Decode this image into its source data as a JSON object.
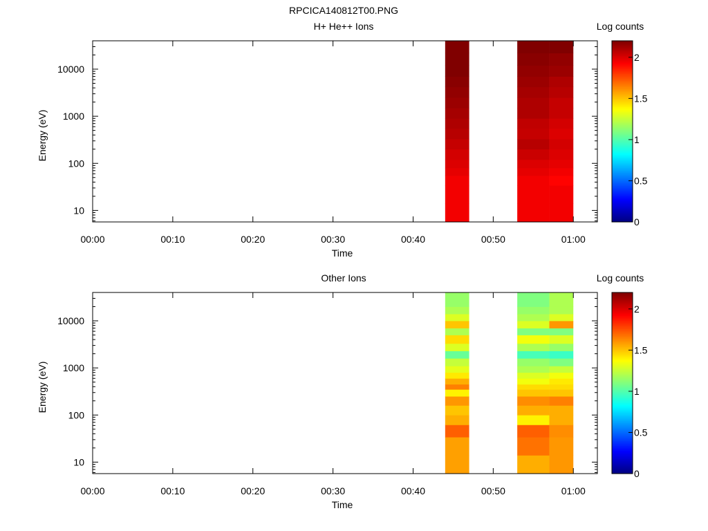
{
  "figure_title": "RPCICA140812T00.PNG",
  "chart_data": [
    {
      "type": "heatmap",
      "title": "H+ He++ Ions",
      "xlabel": "Time",
      "ylabel": "Energy (eV)",
      "yscale": "log",
      "ylim": [
        5.7,
        40000
      ],
      "xlim": [
        "00:00",
        "01:03"
      ],
      "x_ticks": [
        "00:00",
        "00:10",
        "00:20",
        "00:30",
        "00:40",
        "00:50",
        "01:00"
      ],
      "y_ticks": [
        "10",
        "100",
        "1000",
        "10000"
      ],
      "colorbar": {
        "label": "Log counts",
        "range": [
          0,
          2.2
        ],
        "ticks": [
          "0",
          "0.5",
          "1",
          "1.5",
          "2"
        ]
      },
      "data_blocks": [
        {
          "t_start": "00:44",
          "t_end": "00:47",
          "energy_edges": [
            5.7,
            14,
            34,
            55,
            80,
            120,
            200,
            330,
            550,
            900,
            1500,
            2500,
            4200,
            7000,
            12000,
            22000,
            40000
          ],
          "log_counts": [
            1.95,
            1.95,
            1.95,
            1.98,
            2.0,
            2.02,
            2.05,
            2.08,
            2.1,
            2.12,
            2.14,
            2.16,
            2.18,
            2.2,
            2.2,
            2.2
          ]
        },
        {
          "t_start": "00:53",
          "t_end": "00:57",
          "energy_edges": [
            5.7,
            14,
            34,
            55,
            80,
            120,
            200,
            330,
            550,
            900,
            1500,
            2500,
            4200,
            7000,
            12000,
            22000,
            40000
          ],
          "log_counts": [
            1.95,
            1.95,
            1.95,
            1.98,
            2.0,
            2.04,
            2.08,
            2.05,
            2.06,
            2.1,
            2.1,
            2.12,
            2.14,
            2.16,
            2.18,
            2.2
          ]
        },
        {
          "t_start": "00:57",
          "t_end": "01:00",
          "energy_edges": [
            5.7,
            14,
            34,
            55,
            80,
            120,
            200,
            330,
            550,
            900,
            1500,
            2500,
            4200,
            7000,
            12000,
            22000,
            40000
          ],
          "log_counts": [
            1.95,
            1.95,
            1.92,
            1.95,
            1.98,
            2.0,
            2.02,
            2.0,
            2.02,
            2.05,
            2.05,
            2.08,
            2.1,
            2.14,
            2.16,
            2.2
          ]
        }
      ]
    },
    {
      "type": "heatmap",
      "title": "Other Ions",
      "xlabel": "Time",
      "ylabel": "Energy (eV)",
      "yscale": "log",
      "ylim": [
        5.7,
        40000
      ],
      "xlim": [
        "00:00",
        "01:03"
      ],
      "x_ticks": [
        "00:00",
        "00:10",
        "00:20",
        "00:30",
        "00:40",
        "00:50",
        "01:00"
      ],
      "y_ticks": [
        "10",
        "100",
        "1000",
        "10000"
      ],
      "colorbar": {
        "label": "Log counts",
        "range": [
          0,
          2.2
        ],
        "ticks": [
          "0",
          "0.5",
          "1",
          "1.5",
          "2"
        ]
      },
      "data_blocks": [
        {
          "t_start": "00:44",
          "t_end": "00:47",
          "energy_edges": [
            5.7,
            14,
            34,
            62,
            100,
            160,
            250,
            350,
            450,
            600,
            800,
            1100,
            1600,
            2300,
            3300,
            5000,
            7000,
            10000,
            14000,
            20000,
            40000
          ],
          "log_counts": [
            1.58,
            1.58,
            1.72,
            1.55,
            1.5,
            1.6,
            1.4,
            1.65,
            1.55,
            1.42,
            1.32,
            1.25,
            1.05,
            1.3,
            1.45,
            1.2,
            1.5,
            1.3,
            1.2,
            1.15
          ]
        },
        {
          "t_start": "00:53",
          "t_end": "00:57",
          "energy_edges": [
            5.7,
            14,
            34,
            62,
            100,
            160,
            250,
            350,
            450,
            600,
            800,
            1100,
            1600,
            2300,
            3300,
            5000,
            7000,
            10000,
            14000,
            20000,
            40000
          ],
          "log_counts": [
            1.55,
            1.68,
            1.72,
            1.4,
            1.55,
            1.62,
            1.5,
            1.45,
            1.35,
            1.3,
            1.2,
            1.15,
            0.98,
            1.2,
            1.35,
            1.1,
            1.3,
            1.2,
            1.15,
            1.1
          ]
        },
        {
          "t_start": "00:57",
          "t_end": "01:00",
          "energy_edges": [
            5.7,
            14,
            34,
            62,
            100,
            160,
            250,
            350,
            450,
            600,
            800,
            1100,
            1600,
            2300,
            3300,
            5000,
            7000,
            10000,
            14000,
            20000,
            40000
          ],
          "log_counts": [
            1.6,
            1.6,
            1.62,
            1.55,
            1.55,
            1.65,
            1.5,
            1.45,
            1.42,
            1.35,
            1.25,
            1.1,
            0.95,
            1.15,
            1.3,
            1.1,
            1.6,
            1.3,
            1.2,
            1.2
          ]
        }
      ]
    }
  ]
}
